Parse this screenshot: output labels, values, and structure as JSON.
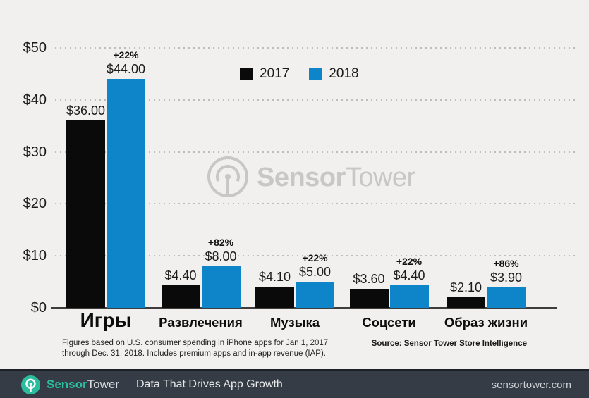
{
  "chart_data": {
    "type": "bar",
    "categories": [
      "Игры",
      "Развлечения",
      "Музыка",
      "Соцсети",
      "Образ жизни"
    ],
    "series": [
      {
        "name": "2017",
        "color": "#0a0a0a",
        "values": [
          36.0,
          4.4,
          4.1,
          3.6,
          2.1
        ],
        "labels": [
          "$36.00",
          "$4.40",
          "$4.10",
          "$3.60",
          "$2.10"
        ]
      },
      {
        "name": "2018",
        "color": "#0e84c9",
        "values": [
          44.0,
          8.0,
          5.0,
          4.4,
          3.9
        ],
        "labels": [
          "$44.00",
          "$8.00",
          "$5.00",
          "$4.40",
          "$3.90"
        ]
      }
    ],
    "pct_change": [
      "+22%",
      "+82%",
      "+22%",
      "+22%",
      "+86%"
    ],
    "y_ticks": [
      "$50",
      "$40",
      "$30",
      "$20",
      "$10",
      "$0"
    ],
    "y_tick_values": [
      50,
      40,
      30,
      20,
      10,
      0
    ],
    "ylim": [
      0,
      50
    ],
    "grid": "dotted-horizontal",
    "legend_position": "top-center"
  },
  "watermark": {
    "bold": "Sensor",
    "light": "Tower"
  },
  "footnote": {
    "line1": "Figures based on U.S. consumer spending in iPhone apps for Jan 1, 2017",
    "line2": "through Dec. 31, 2018. Includes premium apps and in-app revenue (IAP)."
  },
  "source": "Source: Sensor Tower Store Intelligence",
  "footer": {
    "brand_bold": "Sensor",
    "brand_light": "Tower",
    "tagline": "Data That Drives App Growth",
    "url": "sensortower.com",
    "accent": "#2cbd9f"
  }
}
